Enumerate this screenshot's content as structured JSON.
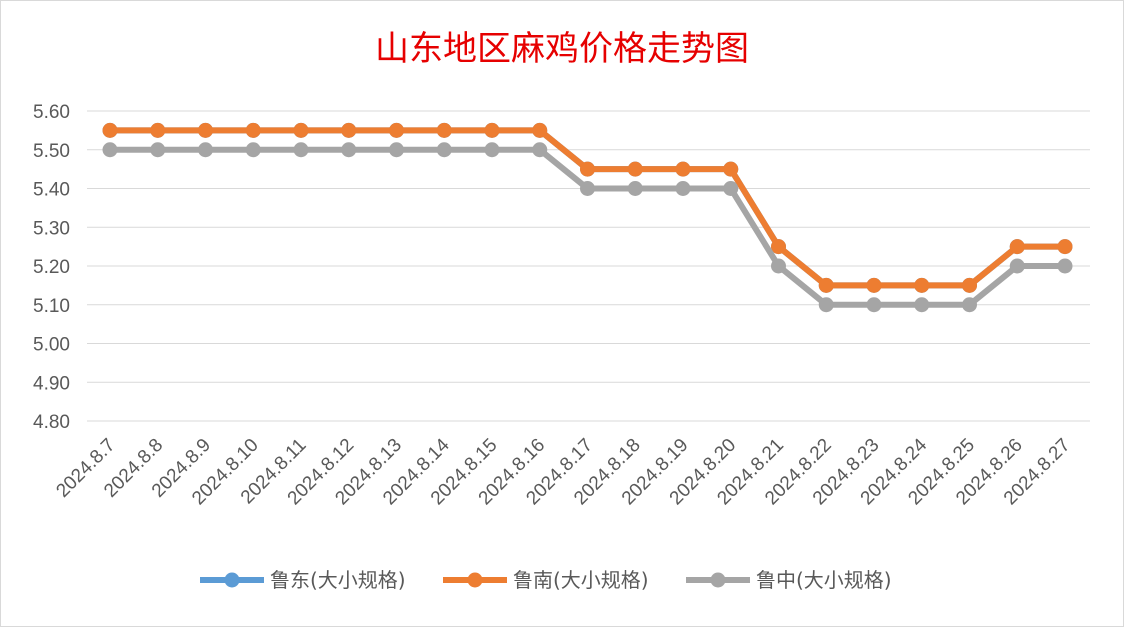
{
  "chart_data": {
    "type": "line",
    "title": "山东地区麻鸡价格走势图",
    "categories": [
      "2024.8.7",
      "2024.8.8",
      "2024.8.9",
      "2024.8.10",
      "2024.8.11",
      "2024.8.12",
      "2024.8.13",
      "2024.8.14",
      "2024.8.15",
      "2024.8.16",
      "2024.8.17",
      "2024.8.18",
      "2024.8.19",
      "2024.8.20",
      "2024.8.21",
      "2024.8.22",
      "2024.8.23",
      "2024.8.24",
      "2024.8.25",
      "2024.8.26",
      "2024.8.27"
    ],
    "series": [
      {
        "name": "鲁东(大小规格)",
        "color": "#5b9bd5",
        "values": [
          5.55,
          5.55,
          5.55,
          5.55,
          5.55,
          5.55,
          5.55,
          5.55,
          5.55,
          5.55,
          5.45,
          5.45,
          5.45,
          5.45,
          5.25,
          5.15,
          5.15,
          5.15,
          5.15,
          5.25,
          5.25
        ]
      },
      {
        "name": "鲁南(大小规格)",
        "color": "#ed7d31",
        "values": [
          5.55,
          5.55,
          5.55,
          5.55,
          5.55,
          5.55,
          5.55,
          5.55,
          5.55,
          5.55,
          5.45,
          5.45,
          5.45,
          5.45,
          5.25,
          5.15,
          5.15,
          5.15,
          5.15,
          5.25,
          5.25
        ]
      },
      {
        "name": "鲁中(大小规格)",
        "color": "#a5a5a5",
        "values": [
          5.5,
          5.5,
          5.5,
          5.5,
          5.5,
          5.5,
          5.5,
          5.5,
          5.5,
          5.5,
          5.4,
          5.4,
          5.4,
          5.4,
          5.2,
          5.1,
          5.1,
          5.1,
          5.1,
          5.2,
          5.2
        ]
      }
    ],
    "y_ticks": [
      "4.80",
      "4.90",
      "5.00",
      "5.10",
      "5.20",
      "5.30",
      "5.40",
      "5.50",
      "5.60"
    ],
    "ylim": [
      4.8,
      5.6
    ],
    "grid": true,
    "legend": "bottom"
  }
}
